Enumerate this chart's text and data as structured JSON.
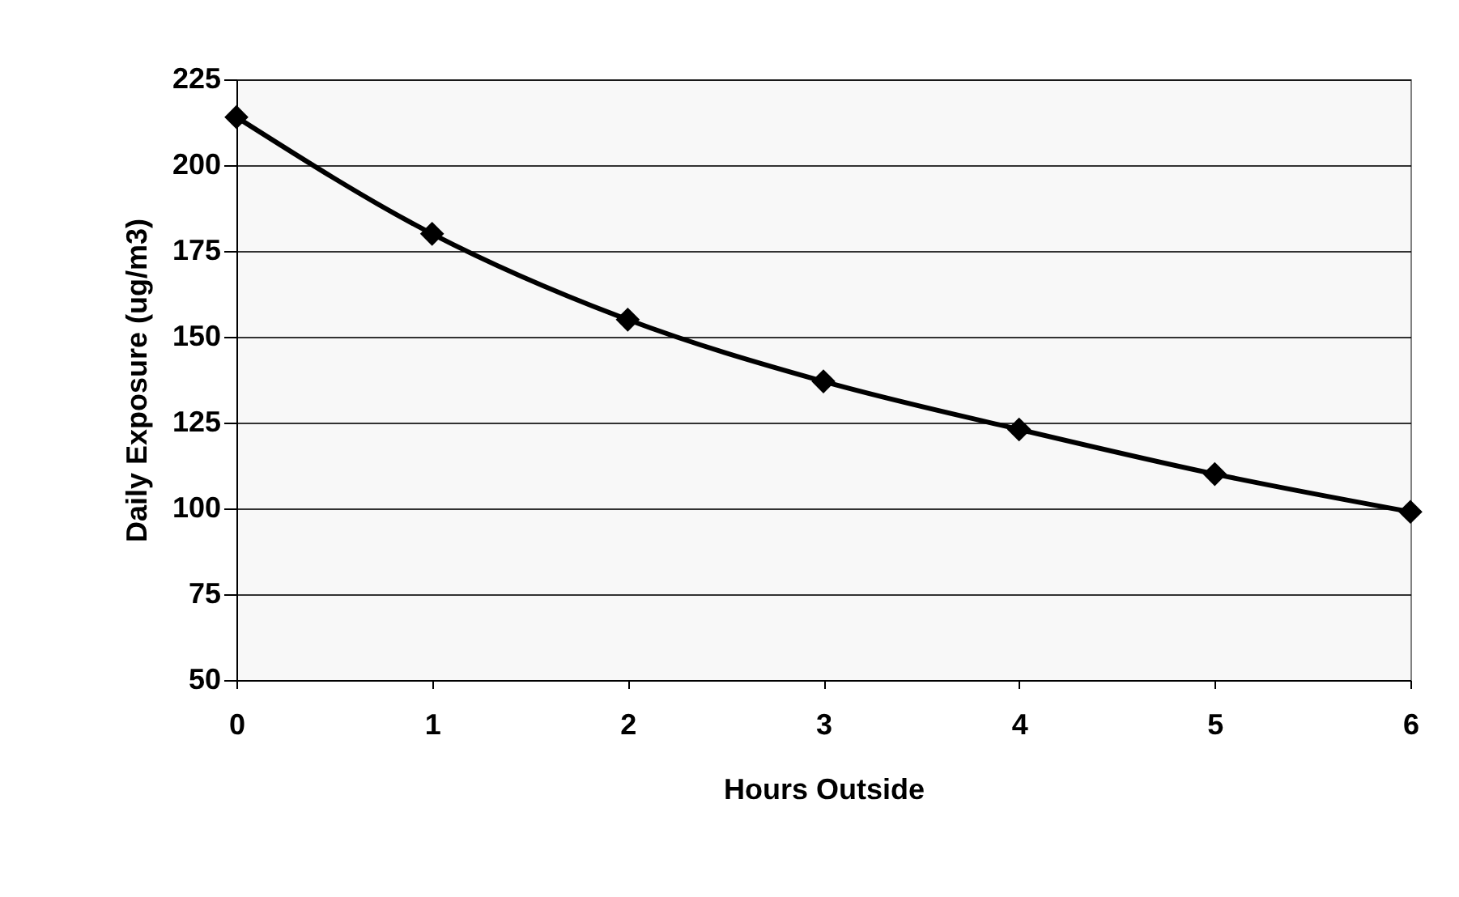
{
  "chart_data": {
    "type": "line",
    "xlabel": "Hours Outside",
    "ylabel": "Daily Exposure (ug/m3)",
    "x": [
      0,
      1,
      2,
      3,
      4,
      5,
      6
    ],
    "series": [
      {
        "color": "#000000",
        "values": [
          214,
          180,
          155,
          137,
          123,
          110,
          99
        ]
      }
    ],
    "xlim": [
      0,
      6
    ],
    "xticks": [
      0,
      1,
      2,
      3,
      4,
      5,
      6
    ],
    "ylim": [
      50,
      225
    ],
    "yticks": [
      50,
      75,
      100,
      125,
      150,
      175,
      200,
      225
    ],
    "grid": "y",
    "marker": "diamond",
    "line_style": "solid",
    "legend": false
  }
}
